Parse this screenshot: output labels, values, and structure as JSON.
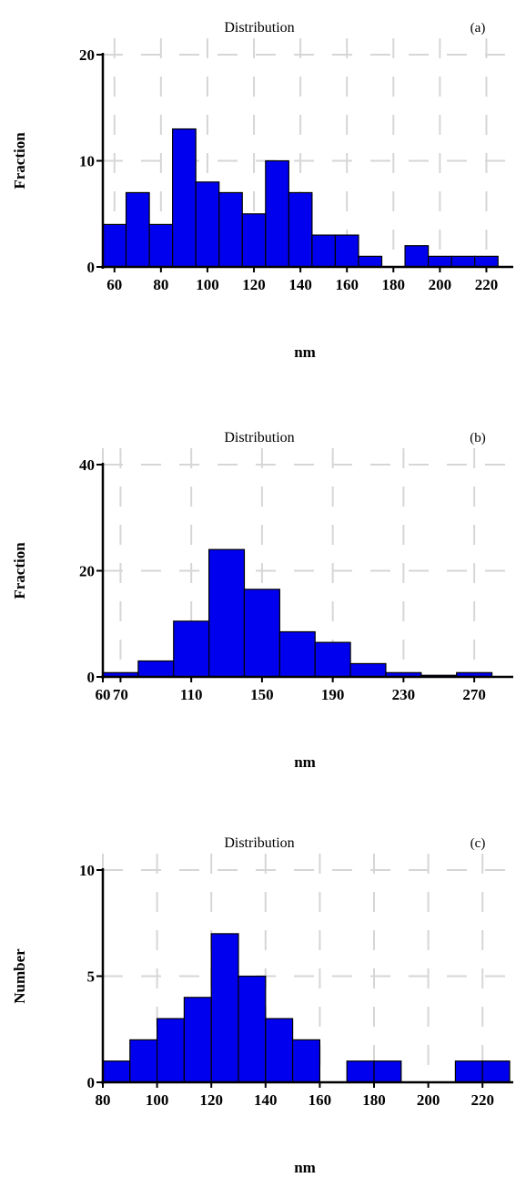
{
  "chart_data": [
    {
      "type": "bar",
      "title": "Distribution",
      "panel_label": "(a)",
      "xlabel": "nm",
      "ylabel": "Fraction",
      "xlim": [
        55,
        230
      ],
      "ylim": [
        0,
        20
      ],
      "yticks": [
        0,
        10,
        20
      ],
      "xticks": [
        60,
        80,
        100,
        120,
        140,
        160,
        180,
        200,
        220
      ],
      "bin_width": 10,
      "bin_starts": [
        55,
        65,
        75,
        85,
        95,
        105,
        115,
        125,
        135,
        145,
        155,
        165,
        175,
        185,
        195,
        205,
        215
      ],
      "values": [
        4,
        7,
        4,
        13,
        8,
        7,
        5,
        10,
        7,
        3,
        3,
        1,
        0,
        2,
        1,
        1,
        1
      ],
      "grid": true,
      "bar_color": "#0000ee"
    },
    {
      "type": "bar",
      "title": "Distribution",
      "panel_label": "(b)",
      "xlabel": "nm",
      "ylabel": "Fraction",
      "xlim": [
        60,
        290
      ],
      "ylim": [
        0,
        40
      ],
      "yticks": [
        0,
        20,
        40
      ],
      "xticks": [
        60,
        70,
        110,
        150,
        190,
        230,
        270
      ],
      "bin_width": 20,
      "bin_starts": [
        60,
        80,
        100,
        120,
        140,
        160,
        180,
        200,
        220,
        240,
        260
      ],
      "values": [
        0.8,
        3,
        10.5,
        24,
        16.5,
        8.5,
        6.5,
        2.5,
        0.8,
        0.3,
        0.8
      ],
      "grid": true,
      "bar_color": "#0000ee"
    },
    {
      "type": "bar",
      "title": "Distribution",
      "panel_label": "(c)",
      "xlabel": "nm",
      "ylabel": "Number",
      "xlim": [
        80,
        230
      ],
      "ylim": [
        0,
        10
      ],
      "yticks": [
        0,
        5,
        10
      ],
      "xticks": [
        80,
        100,
        120,
        140,
        160,
        180,
        200,
        220
      ],
      "bin_width": 10,
      "bin_starts": [
        80,
        90,
        100,
        110,
        120,
        130,
        140,
        150,
        160,
        170,
        180,
        190,
        200,
        210,
        220
      ],
      "values": [
        1,
        2,
        3,
        4,
        7,
        5,
        3,
        2,
        0,
        1,
        1,
        0,
        0,
        1,
        1
      ],
      "grid": true,
      "bar_color": "#0000ee"
    }
  ]
}
